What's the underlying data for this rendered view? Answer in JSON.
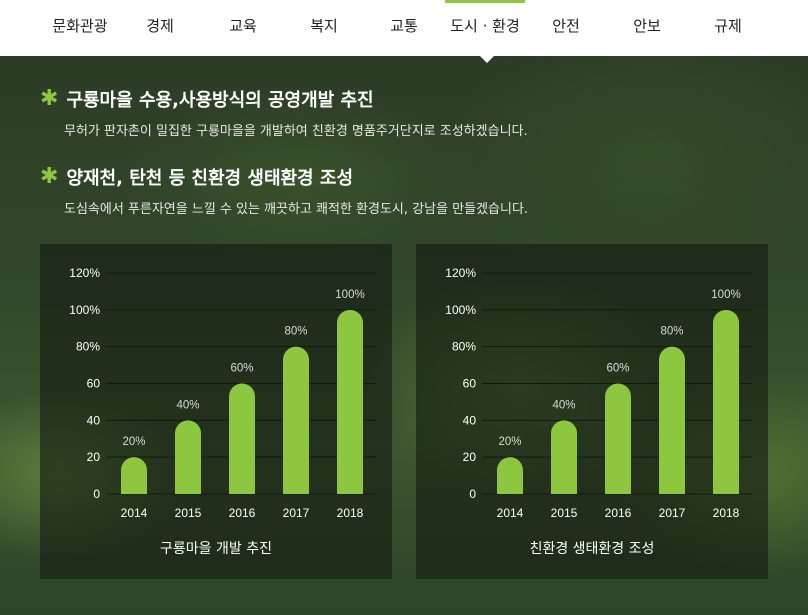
{
  "nav": {
    "items": [
      "문화관광",
      "경제",
      "교육",
      "복지",
      "교통",
      "도시 · 환경",
      "안전",
      "안보",
      "규제"
    ],
    "active_index": 5
  },
  "sections": [
    {
      "title": "구룡마을 수용,사용방식의 공영개발 추진",
      "desc": "무허가 판자촌이 밀집한 구룡마을을 개발하여 친환경 명품주거단지로 조성하겠습니다."
    },
    {
      "title": "양재천, 탄천 등 친환경 생태환경 조성",
      "desc": "도심속에서 푸른자연을 느낄 수 있는 깨끗하고 쾌적한 환경도시, 강남을 만들겠습니다."
    }
  ],
  "colors": {
    "accent": "#8dc63f",
    "bar": "#8dc63f"
  },
  "chart_data": [
    {
      "type": "bar",
      "title": "구룡마을 개발 추진",
      "categories": [
        "2014",
        "2015",
        "2016",
        "2017",
        "2018"
      ],
      "values": [
        20,
        40,
        60,
        80,
        100
      ],
      "data_labels": [
        "20%",
        "40%",
        "60%",
        "80%",
        "100%"
      ],
      "yticks": [
        "0",
        "20",
        "40",
        "60",
        "80%",
        "100%",
        "120%"
      ],
      "ylim": [
        0,
        120
      ],
      "grid": true
    },
    {
      "type": "bar",
      "title": "친환경 생태환경 조성",
      "categories": [
        "2014",
        "2015",
        "2016",
        "2017",
        "2018"
      ],
      "values": [
        20,
        40,
        60,
        80,
        100
      ],
      "data_labels": [
        "20%",
        "40%",
        "60%",
        "80%",
        "100%"
      ],
      "yticks": [
        "0",
        "20",
        "40",
        "60",
        "80%",
        "100%",
        "120%"
      ],
      "ylim": [
        0,
        120
      ],
      "grid": true
    }
  ]
}
